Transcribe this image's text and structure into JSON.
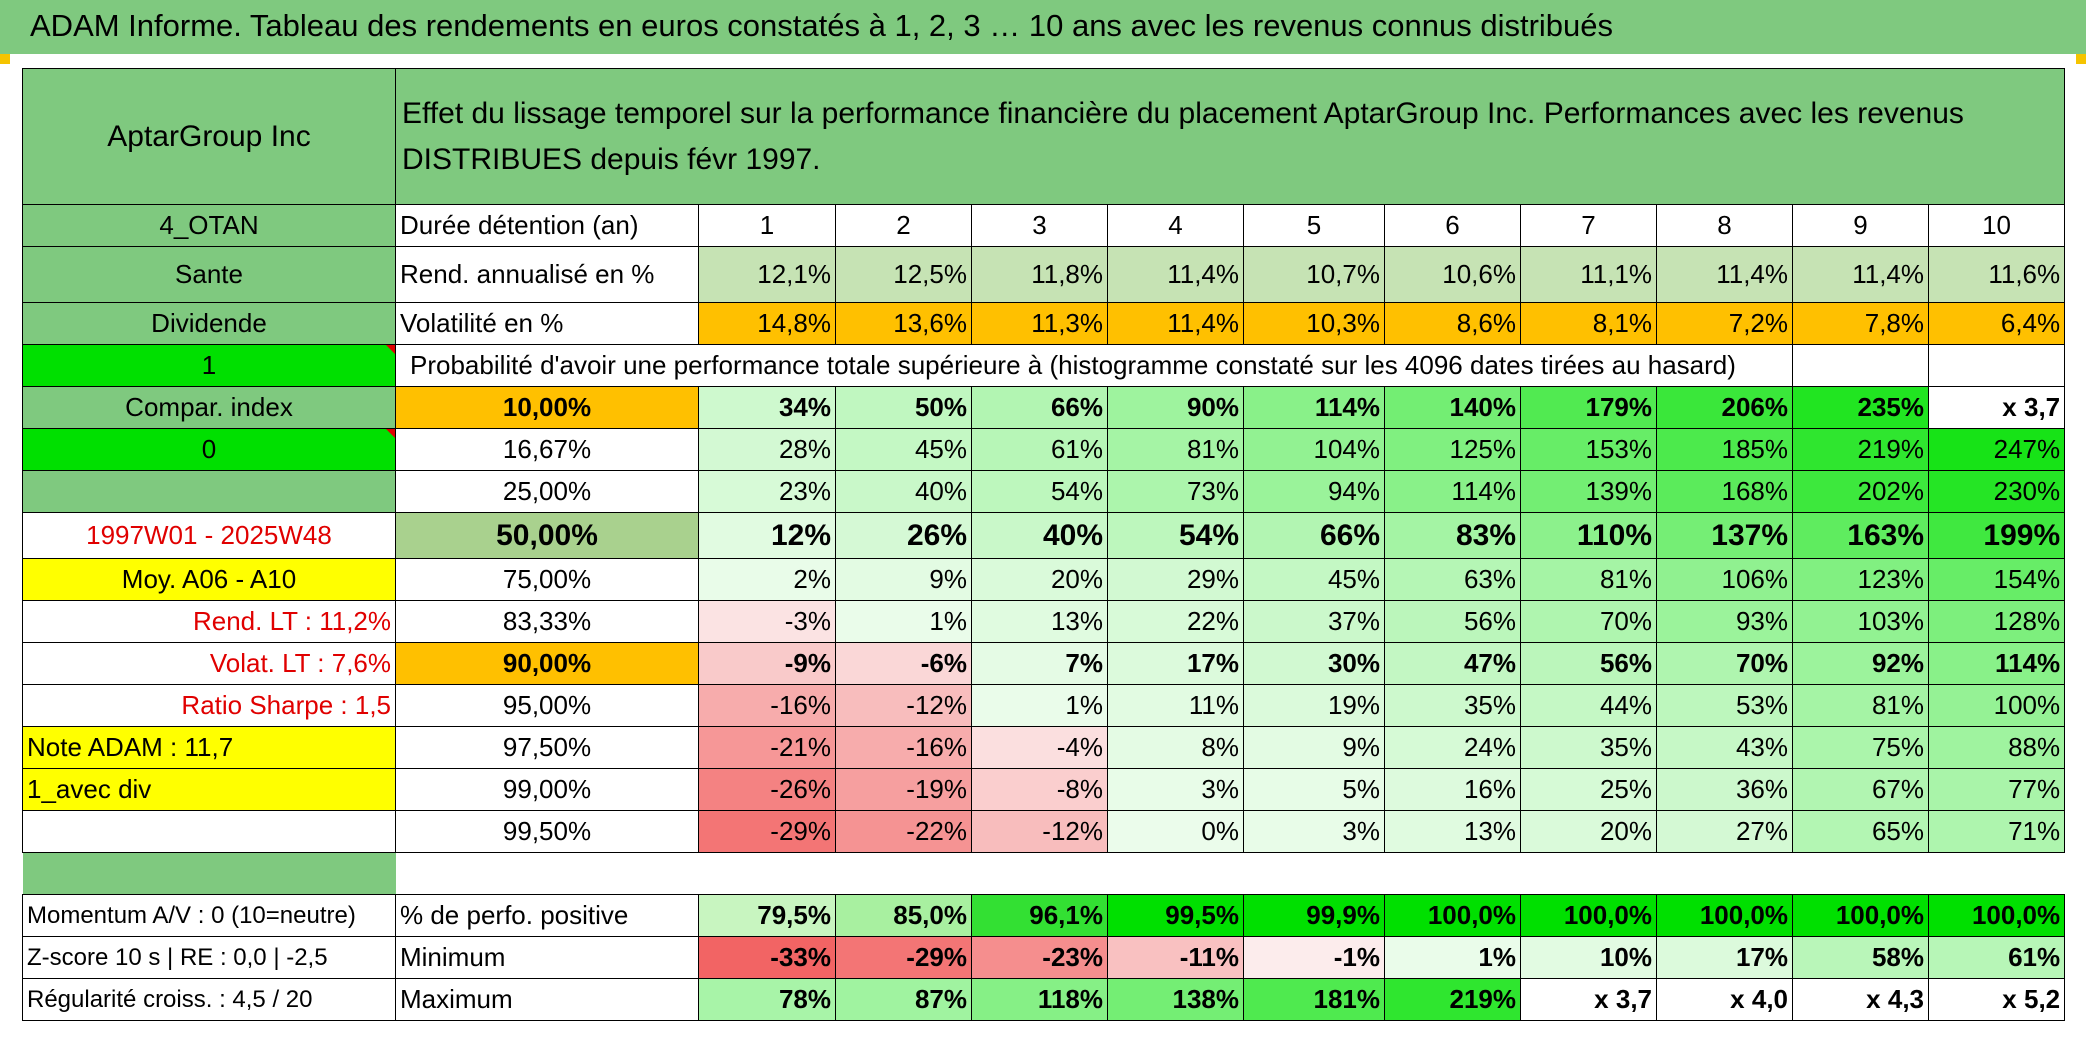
{
  "title": "ADAM Informe. Tableau des rendements en euros constatés à 1, 2, 3 … 10 ans avec les revenus connus distribués",
  "header": {
    "company": "AptarGroup Inc",
    "description": "Effet du lissage temporel sur la performance financière du placement AptarGroup Inc. Performances avec les revenus DISTRIBUES depuis févr 1997."
  },
  "left": {
    "code": "4_OTAN",
    "sector": "Sante",
    "type": "Dividende",
    "flag1": "1",
    "compar": "Compar. index",
    "flag0": "0",
    "blank": "",
    "period": "1997W01 - 2025W48",
    "moy": "Moy. A06 - A10",
    "rend_lt": "Rend. LT :   11,2%",
    "volat_lt": "Volat. LT :   7,6%",
    "sharpe": "Ratio Sharpe :    1,5",
    "note": "Note ADAM : 11,7",
    "avec_div": "1_avec div",
    "momentum": "Momentum A/V : 0 (10=neutre)",
    "zscore": "Z-score 10 s | RE : 0,0 | -2,5",
    "regularite": "Régularité croiss. : 4,5 / 20"
  },
  "rows": {
    "duree_label": "Durée détention (an)",
    "years": [
      "1",
      "2",
      "3",
      "4",
      "5",
      "6",
      "7",
      "8",
      "9",
      "10"
    ],
    "rend_label": "Rend. annualisé en %",
    "rend": [
      "12,1%",
      "12,5%",
      "11,8%",
      "11,4%",
      "10,7%",
      "10,6%",
      "11,1%",
      "11,4%",
      "11,4%",
      "11,6%"
    ],
    "vol_label": "Volatilité en %",
    "vol": [
      "14,8%",
      "13,6%",
      "11,3%",
      "11,4%",
      "10,3%",
      "8,6%",
      "8,1%",
      "7,2%",
      "7,8%",
      "6,4%"
    ],
    "proba_label": "Probabilité d'avoir une performance totale supérieure à (histogramme constaté sur les 4096 dates tirées au hasard)",
    "quantiles": [
      {
        "label": "10,00%",
        "values": [
          "34%",
          "50%",
          "66%",
          "90%",
          "114%",
          "140%",
          "179%",
          "206%",
          "235%",
          "x 3,7"
        ]
      },
      {
        "label": "16,67%",
        "values": [
          "28%",
          "45%",
          "61%",
          "81%",
          "104%",
          "125%",
          "153%",
          "185%",
          "219%",
          "247%"
        ]
      },
      {
        "label": "25,00%",
        "values": [
          "23%",
          "40%",
          "54%",
          "73%",
          "94%",
          "114%",
          "139%",
          "168%",
          "202%",
          "230%"
        ]
      },
      {
        "label": "50,00%",
        "values": [
          "12%",
          "26%",
          "40%",
          "54%",
          "66%",
          "83%",
          "110%",
          "137%",
          "163%",
          "199%"
        ]
      },
      {
        "label": "75,00%",
        "values": [
          "2%",
          "9%",
          "20%",
          "29%",
          "45%",
          "63%",
          "81%",
          "106%",
          "123%",
          "154%"
        ]
      },
      {
        "label": "83,33%",
        "values": [
          "-3%",
          "1%",
          "13%",
          "22%",
          "37%",
          "56%",
          "70%",
          "93%",
          "103%",
          "128%"
        ]
      },
      {
        "label": "90,00%",
        "values": [
          "-9%",
          "-6%",
          "7%",
          "17%",
          "30%",
          "47%",
          "56%",
          "70%",
          "92%",
          "114%"
        ]
      },
      {
        "label": "95,00%",
        "values": [
          "-16%",
          "-12%",
          "1%",
          "11%",
          "19%",
          "35%",
          "44%",
          "53%",
          "81%",
          "100%"
        ]
      },
      {
        "label": "97,50%",
        "values": [
          "-21%",
          "-16%",
          "-4%",
          "8%",
          "9%",
          "24%",
          "35%",
          "43%",
          "75%",
          "88%"
        ]
      },
      {
        "label": "99,00%",
        "values": [
          "-26%",
          "-19%",
          "-8%",
          "3%",
          "5%",
          "16%",
          "25%",
          "36%",
          "67%",
          "77%"
        ]
      },
      {
        "label": "99,50%",
        "values": [
          "-29%",
          "-22%",
          "-12%",
          "0%",
          "3%",
          "13%",
          "20%",
          "27%",
          "65%",
          "71%"
        ]
      }
    ],
    "positive_label": "% de perfo. positive",
    "positive": [
      "79,5%",
      "85,0%",
      "96,1%",
      "99,5%",
      "99,9%",
      "100,0%",
      "100,0%",
      "100,0%",
      "100,0%",
      "100,0%"
    ],
    "min_label": "Minimum",
    "min": [
      "-33%",
      "-29%",
      "-23%",
      "-11%",
      "-1%",
      "1%",
      "10%",
      "17%",
      "58%",
      "61%"
    ],
    "max_label": "Maximum",
    "max": [
      "78%",
      "87%",
      "118%",
      "138%",
      "181%",
      "219%",
      "x 3,7",
      "x 4,0",
      "x 4,3",
      "x 5,2"
    ]
  },
  "colors": {
    "header_green": "#7fc97f",
    "bright_green": "#00e000",
    "yellow": "#ffff00",
    "orange": "#ffc000",
    "red_text": "#e00000"
  }
}
